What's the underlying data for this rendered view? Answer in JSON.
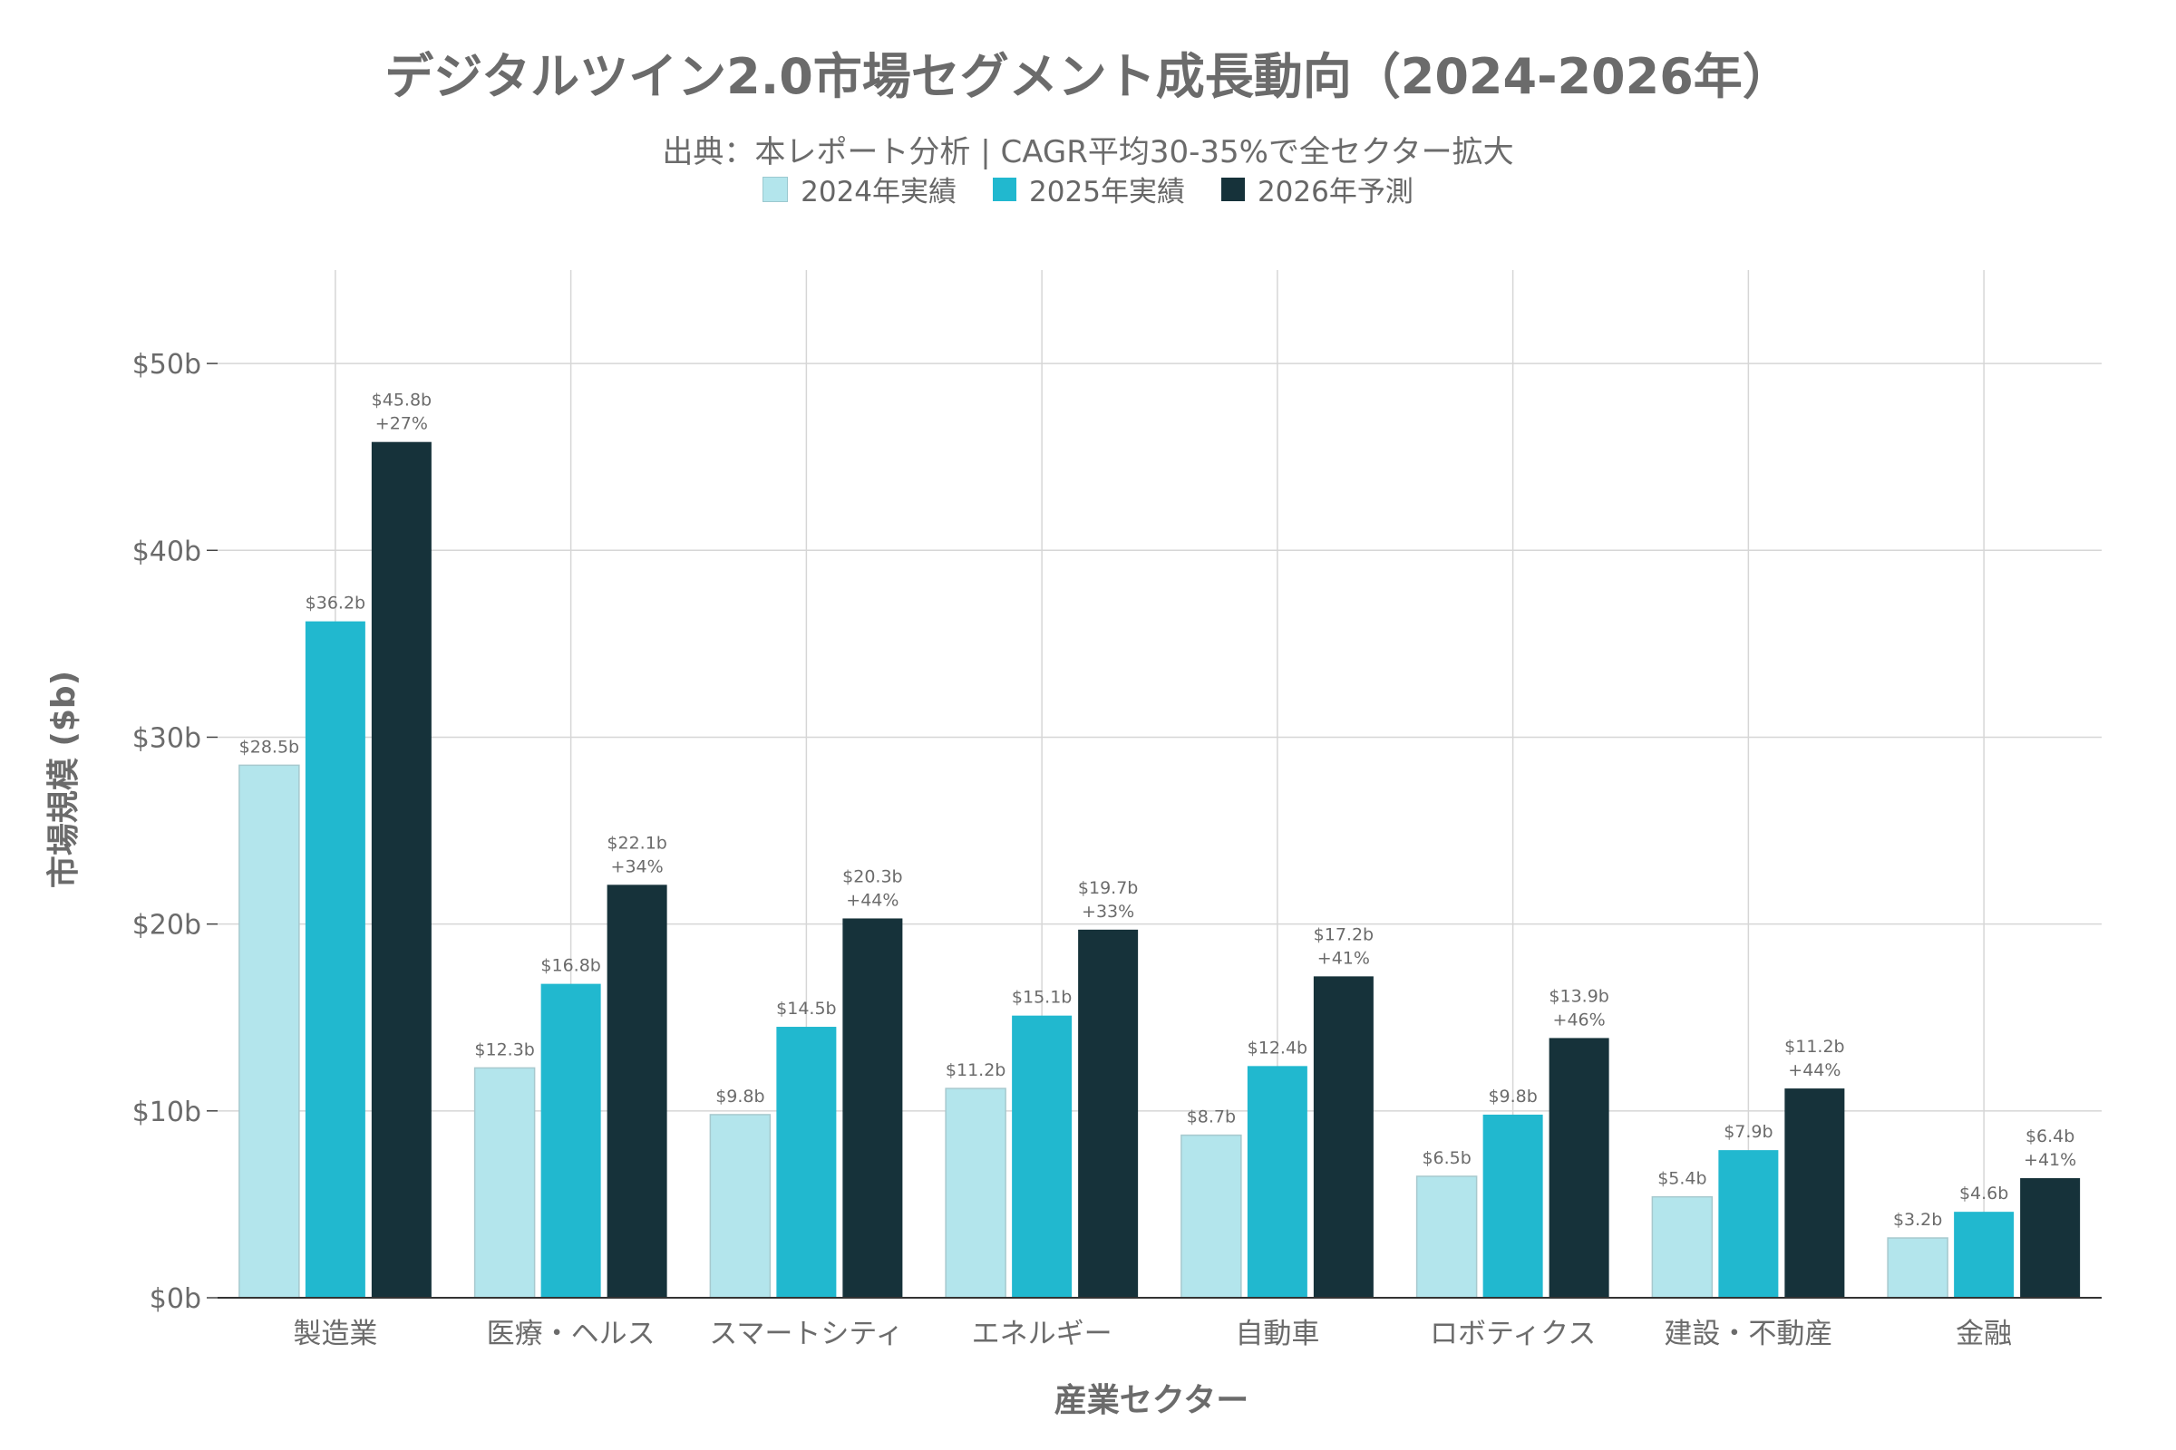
{
  "chart_data": {
    "type": "bar",
    "title": "デジタルツイン2.0市場セグメント成長動向（2024-2026年）",
    "subtitle": "出典：本レポート分析 | CAGR平均30-35%で全セクター拡大",
    "xlabel": "産業セクター",
    "ylabel": "市場規模 ($b)",
    "ylim": [
      0,
      55
    ],
    "yticks": [
      "$0b",
      "$10b",
      "$20b",
      "$30b",
      "$40b",
      "$50b"
    ],
    "grid": true,
    "legend_position": "top-center",
    "categories": [
      "製造業",
      "医療・ヘルス",
      "スマートシティ",
      "エネルギー",
      "自動車",
      "ロボティクス",
      "建設・不動産",
      "金融"
    ],
    "series": [
      {
        "name": "2024年実績",
        "color": "#b3e5ec",
        "values": [
          28.5,
          12.3,
          9.8,
          11.2,
          8.7,
          6.5,
          5.4,
          3.2
        ],
        "labels": [
          "$28.5b",
          "$12.3b",
          "$9.8b",
          "$11.2b",
          "$8.7b",
          "$6.5b",
          "$5.4b",
          "$3.2b"
        ]
      },
      {
        "name": "2025年実績",
        "color": "#21b8cf",
        "values": [
          36.2,
          16.8,
          14.5,
          15.1,
          12.4,
          9.8,
          7.9,
          4.6
        ],
        "labels": [
          "$36.2b",
          "$16.8b",
          "$14.5b",
          "$15.1b",
          "$12.4b",
          "$9.8b",
          "$7.9b",
          "$4.6b"
        ]
      },
      {
        "name": "2026年予測",
        "color": "#16323a",
        "values": [
          45.8,
          22.1,
          20.3,
          19.7,
          17.2,
          13.9,
          11.2,
          6.4
        ],
        "labels": [
          "$45.8b",
          "$22.1b",
          "$20.3b",
          "$19.7b",
          "$17.2b",
          "$13.9b",
          "$11.2b",
          "$6.4b"
        ],
        "growth_labels": [
          "+27%",
          "+34%",
          "+44%",
          "+33%",
          "+41%",
          "+46%",
          "+44%",
          "+41%"
        ]
      }
    ]
  }
}
